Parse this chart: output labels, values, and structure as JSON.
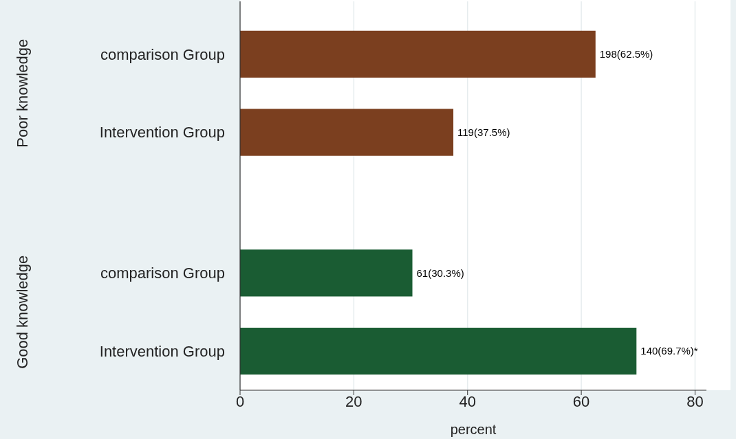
{
  "chart_data": {
    "type": "bar",
    "orientation": "horizontal",
    "xlabel": "percent",
    "categories": [
      "comparison Group",
      "Intervention Group",
      "comparison Group",
      "Intervention Group"
    ],
    "series": [
      {
        "color": "#7b3f1f",
        "values": [
          62.5,
          37.5,
          null,
          null
        ],
        "value_labels": [
          "198(62.5%)",
          "119(37.5%)",
          null,
          null
        ]
      },
      {
        "color": "#1a5c33",
        "values": [
          null,
          null,
          30.3,
          69.7
        ],
        "value_labels": [
          null,
          null,
          "61(30.3%)",
          "140(69.7%)*"
        ]
      }
    ],
    "annotations": [
      "Poor knowledge",
      "Good knowledge"
    ],
    "xlim": [
      0,
      82
    ],
    "xticks": [
      0,
      20,
      40,
      60,
      80
    ],
    "grid": "x"
  }
}
